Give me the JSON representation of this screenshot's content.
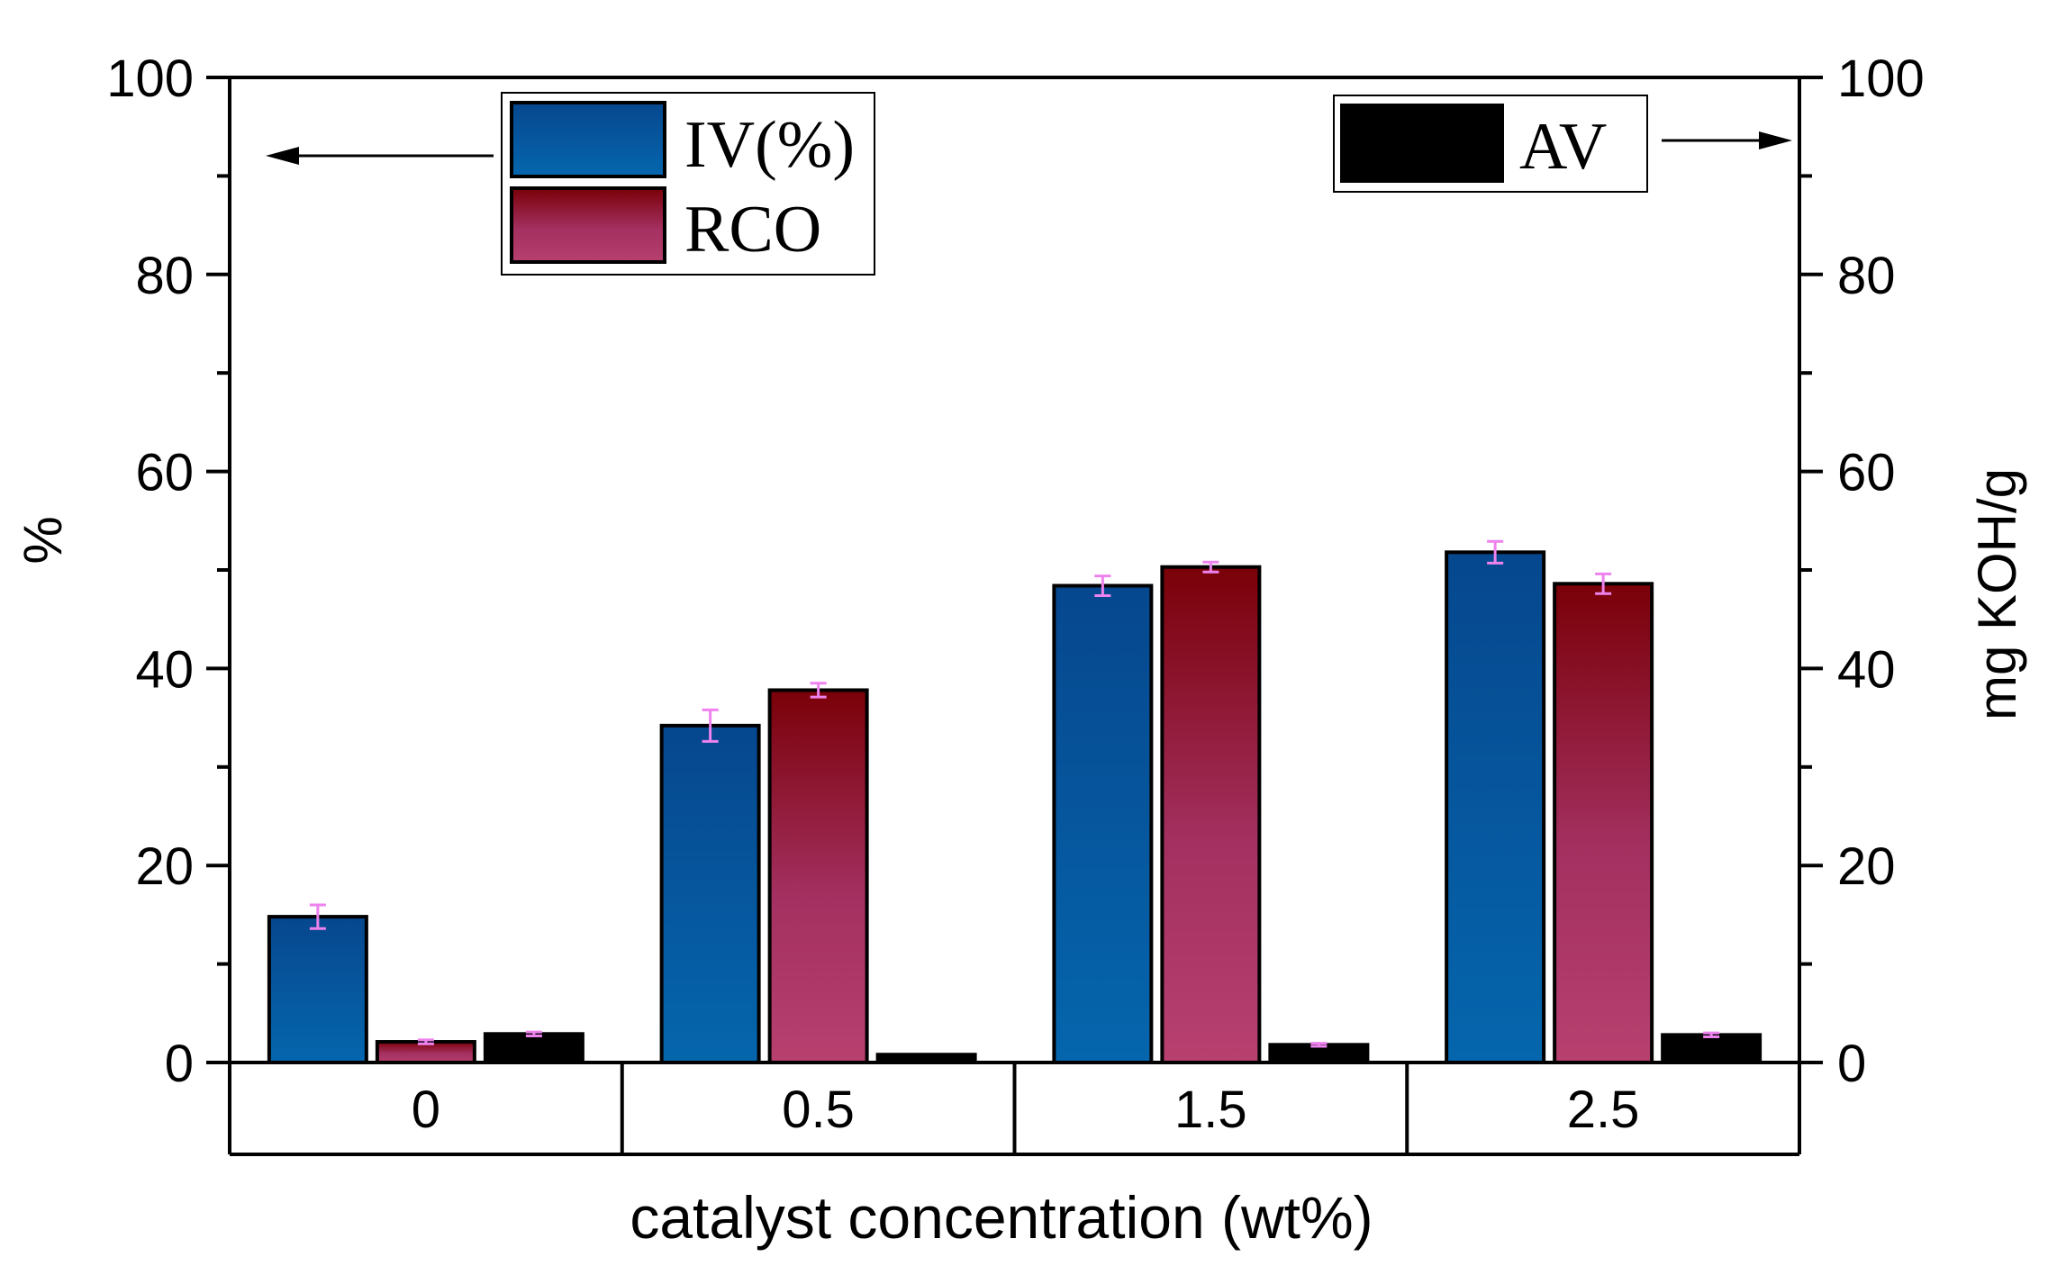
{
  "chart_data": {
    "type": "bar",
    "categories": [
      "0",
      "0.5",
      "1.5",
      "2.5"
    ],
    "xlabel": "catalyst concentration (wt%)",
    "ylabel_left": "%",
    "ylabel_right": "mg KOH/g",
    "ylim_left": [
      0,
      100
    ],
    "ylim_right": [
      0,
      100
    ],
    "yticks_left": [
      "0",
      "20",
      "40",
      "60",
      "80",
      "100"
    ],
    "yticks_right": [
      "0",
      "20",
      "40",
      "60",
      "80",
      "100"
    ],
    "legend_placement": "top",
    "series": [
      {
        "name": "IV(%)",
        "axis": "left",
        "values": [
          14.8,
          34.2,
          48.4,
          51.8
        ],
        "errors": [
          1.2,
          1.6,
          1.0,
          1.1
        ],
        "color_top": "#06478e",
        "color_bottom": "#0566ad"
      },
      {
        "name": "RCO",
        "axis": "left",
        "values": [
          2.1,
          37.8,
          50.3,
          48.6
        ],
        "errors": [
          0.2,
          0.7,
          0.5,
          1.0
        ],
        "color_top": "#7a0008",
        "color_bottom": "#b7406f"
      },
      {
        "name": "AV",
        "axis": "right",
        "values": [
          2.9,
          0.8,
          1.8,
          2.8
        ],
        "errors": [
          0.2,
          0.0,
          0.15,
          0.2
        ],
        "color_top": "#000000",
        "color_bottom": "#000000"
      }
    ],
    "error_bar_color": "#ee82ee"
  }
}
